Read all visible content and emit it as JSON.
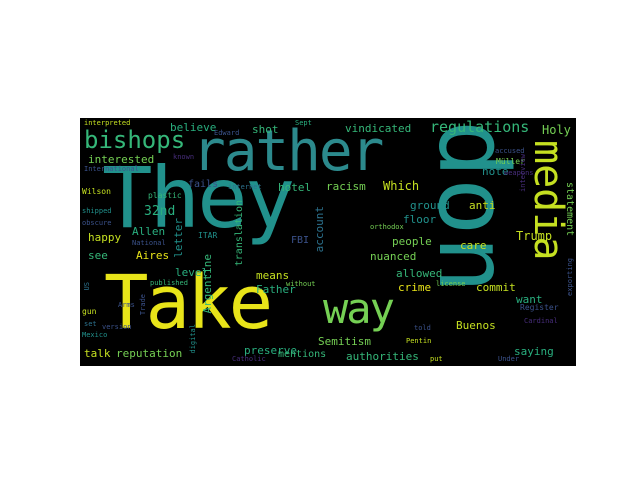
{
  "words": {
    "they": "They",
    "take": "Take",
    "don": "don",
    "rather": "rather",
    "media": "media",
    "way": "way",
    "bishops": "bishops",
    "regulations": "regulations",
    "vindicated": "vindicated",
    "holy": "Holy",
    "believe": "believe",
    "shot": "shot",
    "interested": "interested",
    "fails": "fails",
    "hotel": "hotel",
    "racism": "racism",
    "which": "Which",
    "note": "note",
    "ground": "ground",
    "anti": "anti",
    "statement": "statement",
    "n32nd": "32nd",
    "allen": "Allen",
    "happy": "happy",
    "see": "see",
    "aires": "Aires",
    "level": "level",
    "letter": "letter",
    "translation": "translation",
    "argentine": "Argentine",
    "account": "account",
    "fbi": "FBI",
    "floor": "floor",
    "people": "people",
    "nuanced": "nuanced",
    "allowed": "allowed",
    "crime": "crime",
    "care": "care",
    "trump": "Trump",
    "want": "want",
    "means": "means",
    "father": "Father",
    "commit": "commit",
    "buenos": "Buenos",
    "semitism": "Semitism",
    "talk": "talk",
    "reputation": "reputation",
    "preserve": "preserve",
    "mentions": "mentions",
    "authorities": "authorities",
    "saying": "saying",
    "interpreted": "interpreted",
    "sept": "Sept",
    "edward": "Edward",
    "known": "known",
    "international": "International",
    "muller": "Müller",
    "accused": "accused",
    "weapons": "weapons",
    "wilson": "Wilson",
    "plastic": "plastic",
    "internet": "internet",
    "shipped": "shipped",
    "obscure": "obscure",
    "itar": "ITAR",
    "national": "National",
    "orthodox": "orthodox",
    "interview": "interview",
    "exporting": "exporting",
    "us": "US",
    "published": "published",
    "without": "without",
    "license": "license",
    "gun": "gun",
    "arms": "Arms",
    "trade": "Trade",
    "version": "version",
    "mexico": "Mexico",
    "digital": "digital",
    "catholic": "Catholic",
    "set": "set",
    "told": "told",
    "pentin": "Pentin",
    "put": "put",
    "register": "Register",
    "cardinal": "Cardinal",
    "under": "Under"
  },
  "palette": {
    "background": "#000000",
    "page": "#ffffff",
    "yellow": "#e8e419",
    "green_yellow": "#c5e021",
    "green": "#75d054",
    "sea_green": "#35b779",
    "teal_green": "#29af7f",
    "teal": "#21918c",
    "blue_teal": "#2c728e",
    "blue": "#3b528b",
    "purple": "#472d7b",
    "dark_purple": "#440154"
  }
}
